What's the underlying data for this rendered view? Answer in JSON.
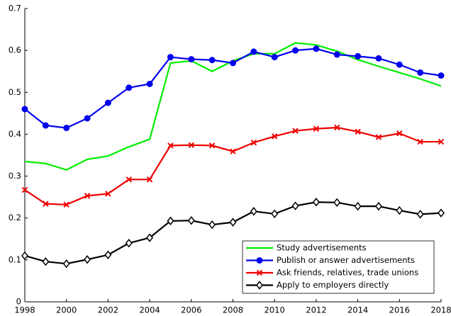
{
  "chart_data": {
    "type": "line",
    "x": [
      1998,
      1999,
      2000,
      2001,
      2002,
      2003,
      2004,
      2005,
      2006,
      2007,
      2008,
      2009,
      2010,
      2011,
      2012,
      2013,
      2014,
      2015,
      2016,
      2017,
      2018
    ],
    "series": [
      {
        "name": "Study advertisements",
        "color": "#00ee00",
        "marker": "none",
        "values": [
          0.335,
          0.33,
          0.315,
          0.34,
          0.348,
          0.37,
          0.388,
          0.57,
          0.575,
          0.55,
          0.575,
          0.592,
          0.592,
          0.618,
          0.613,
          0.598,
          0.578,
          0.562,
          0.547,
          0.532,
          0.515
        ]
      },
      {
        "name": "Publish or answer advertisements",
        "color": "#0000ee",
        "marker": "circle",
        "values": [
          0.46,
          0.421,
          0.415,
          0.438,
          0.475,
          0.511,
          0.52,
          0.584,
          0.579,
          0.577,
          0.57,
          0.597,
          0.584,
          0.6,
          0.604,
          0.59,
          0.586,
          0.581,
          0.566,
          0.547,
          0.54
        ]
      },
      {
        "name": "Ask friends, relatives, trade unions",
        "color": "#ee0000",
        "marker": "x",
        "values": [
          0.267,
          0.234,
          0.232,
          0.253,
          0.258,
          0.292,
          0.292,
          0.373,
          0.374,
          0.373,
          0.359,
          0.38,
          0.395,
          0.408,
          0.413,
          0.416,
          0.406,
          0.393,
          0.402,
          0.382,
          0.382
        ]
      },
      {
        "name": "Apply to employers directly",
        "color": "#000000",
        "marker": "diamond",
        "values": [
          0.11,
          0.096,
          0.091,
          0.101,
          0.112,
          0.14,
          0.153,
          0.193,
          0.194,
          0.184,
          0.19,
          0.216,
          0.21,
          0.229,
          0.238,
          0.237,
          0.228,
          0.228,
          0.218,
          0.209,
          0.212
        ]
      }
    ],
    "xlim": [
      1998,
      2018
    ],
    "xticks": [
      1998,
      2000,
      2002,
      2004,
      2006,
      2008,
      2010,
      2012,
      2014,
      2016,
      2018
    ],
    "ylim": [
      0,
      0.7
    ],
    "yticks": [
      0,
      0.1,
      0.2,
      0.3,
      0.4,
      0.5,
      0.6,
      0.7
    ],
    "grid": false,
    "legend": "lower right"
  }
}
